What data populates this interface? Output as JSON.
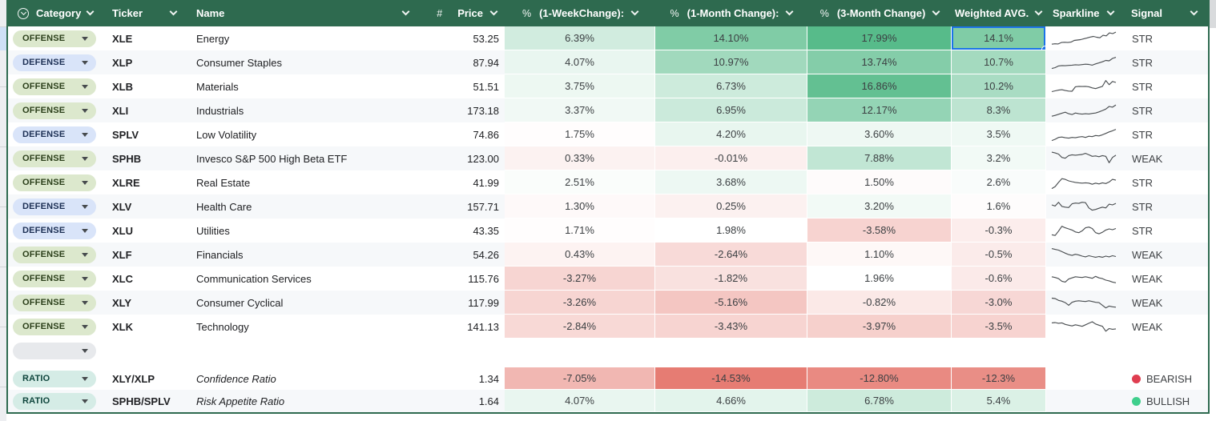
{
  "header": {
    "category": "Category",
    "ticker": "Ticker",
    "name": "Name",
    "price": "Price",
    "week": "(1-WeekChange):",
    "month1": "(1-Month Change):",
    "month3": "(3-Month Change)",
    "wavg": "Weighted AVG.",
    "sparkline": "Sparkline",
    "signal": "Signal",
    "price_type_icon": "#",
    "percent_type_icon": "%"
  },
  "colors": {
    "header_bg": "#2e6a4f",
    "table_border": "#2e6a4f",
    "band_row": "#f6f8fa",
    "selection": "#1a73e8",
    "bearish_dot": "#df3d50",
    "bullish_dot": "#3fcf8c",
    "sparkline_stroke": "#4a4e51"
  },
  "color_scale": {
    "negative": "#e67c73",
    "positive": "#57bb8a",
    "midpoint": 2.0,
    "min": -14.53,
    "max": 17.99
  },
  "rows": [
    {
      "category": "OFFENSE",
      "pill": "offense",
      "ticker": "XLE",
      "name": "Energy",
      "price": "53.25",
      "week": "6.39%",
      "month1": "14.10%",
      "month3": "17.99%",
      "wavg": "14.1%",
      "signal": "STR",
      "dot": null,
      "band": false,
      "selected": "wavg",
      "sparkline": [
        1.2,
        1.4,
        1.3,
        2.1,
        2.2,
        2.1,
        2.3,
        3.2,
        3.4,
        3.6,
        4.1,
        4.5,
        5.0,
        5.3,
        4.9,
        4.6,
        5.9,
        5.6,
        7.2,
        6.8,
        7.6
      ]
    },
    {
      "category": "DEFENSE",
      "pill": "defense",
      "ticker": "XLP",
      "name": "Consumer Staples",
      "price": "87.94",
      "week": "4.07%",
      "month1": "10.97%",
      "month3": "13.74%",
      "wavg": "10.7%",
      "signal": "STR",
      "dot": null,
      "band": true,
      "sparkline": [
        1.0,
        1.5,
        2.4,
        2.6,
        2.5,
        2.7,
        2.8,
        3.0,
        2.9,
        3.1,
        3.3,
        3.2,
        2.8,
        3.5,
        4.0,
        4.6,
        5.3,
        5.1,
        6.4,
        7.0
      ]
    },
    {
      "category": "OFFENSE",
      "pill": "offense",
      "ticker": "XLB",
      "name": "Materials",
      "price": "51.51",
      "week": "3.75%",
      "month1": "6.73%",
      "month3": "16.86%",
      "wavg": "10.2%",
      "signal": "STR",
      "dot": null,
      "band": false,
      "sparkline": [
        1.5,
        1.9,
        2.3,
        2.5,
        2.1,
        1.8,
        1.7,
        4.1,
        4.3,
        4.2,
        4.3,
        4.1,
        3.5,
        3.1,
        3.7,
        4.3,
        7.4,
        5.2,
        6.9,
        6.4
      ]
    },
    {
      "category": "OFFENSE",
      "pill": "offense",
      "ticker": "XLI",
      "name": "Industrials",
      "price": "173.18",
      "week": "3.37%",
      "month1": "6.95%",
      "month3": "12.17%",
      "wavg": "8.3%",
      "signal": "STR",
      "dot": null,
      "band": true,
      "sparkline": [
        1.2,
        1.6,
        2.2,
        2.8,
        3.3,
        2.5,
        2.1,
        2.9,
        2.5,
        2.3,
        2.5,
        2.4,
        2.7,
        2.9,
        3.5,
        4.2,
        5.0,
        6.4,
        6.0,
        7.2
      ]
    },
    {
      "category": "DEFENSE",
      "pill": "defense",
      "ticker": "SPLV",
      "name": "Low Volatility",
      "price": "74.86",
      "week": "1.75%",
      "month1": "4.20%",
      "month3": "3.60%",
      "wavg": "3.5%",
      "signal": "STR",
      "dot": null,
      "band": false,
      "sparkline": [
        1.0,
        1.7,
        2.7,
        2.9,
        2.5,
        2.3,
        2.7,
        2.5,
        2.9,
        3.1,
        2.7,
        3.3,
        3.1,
        3.7,
        3.5,
        4.1,
        4.8,
        5.6,
        6.2,
        7.0
      ]
    },
    {
      "category": "OFFENSE",
      "pill": "offense",
      "ticker": "SPHB",
      "name": "Invesco S&P 500 High Beta ETF",
      "price": "123.00",
      "week": "0.33%",
      "month1": "-0.01%",
      "month3": "7.88%",
      "wavg": "3.2%",
      "signal": "WEAK",
      "dot": null,
      "band": true,
      "sparkline": [
        7.6,
        7.2,
        6.6,
        4.8,
        4.4,
        5.8,
        6.2,
        6.0,
        6.2,
        6.4,
        7.0,
        6.2,
        5.4,
        5.6,
        5.2,
        5.8,
        5.4,
        2.0,
        4.8,
        6.0
      ]
    },
    {
      "category": "OFFENSE",
      "pill": "offense",
      "ticker": "XLRE",
      "name": "Real Estate",
      "price": "41.99",
      "week": "2.51%",
      "month1": "3.68%",
      "month3": "1.50%",
      "wavg": "2.6%",
      "signal": "STR",
      "dot": null,
      "band": false,
      "sparkline": [
        1.0,
        2.1,
        4.3,
        6.3,
        5.9,
        5.1,
        4.7,
        4.3,
        4.1,
        3.9,
        4.1,
        3.9,
        3.3,
        3.9,
        3.5,
        4.1,
        3.7,
        4.5,
        5.9,
        5.5
      ]
    },
    {
      "category": "DEFENSE",
      "pill": "defense",
      "ticker": "XLV",
      "name": "Health Care",
      "price": "157.71",
      "week": "1.30%",
      "month1": "0.25%",
      "month3": "3.20%",
      "wavg": "1.6%",
      "signal": "STR",
      "dot": null,
      "band": true,
      "sparkline": [
        5.1,
        4.5,
        6.5,
        4.3,
        3.9,
        3.7,
        5.7,
        6.1,
        5.9,
        6.5,
        6.3,
        3.5,
        2.3,
        2.7,
        3.3,
        3.9,
        3.5,
        5.5,
        5.1,
        5.9
      ]
    },
    {
      "category": "DEFENSE",
      "pill": "defense",
      "ticker": "XLU",
      "name": "Utilities",
      "price": "43.35",
      "week": "1.71%",
      "month1": "1.98%",
      "month3": "-3.58%",
      "wavg": "-0.3%",
      "signal": "STR",
      "dot": null,
      "band": false,
      "sparkline": [
        2.0,
        1.6,
        3.9,
        6.5,
        5.7,
        5.1,
        4.5,
        3.5,
        3.1,
        4.1,
        5.7,
        6.1,
        5.3,
        3.1,
        2.5,
        3.3,
        4.5,
        5.1,
        4.7,
        5.3
      ]
    },
    {
      "category": "OFFENSE",
      "pill": "offense",
      "ticker": "XLF",
      "name": "Financials",
      "price": "54.26",
      "week": "0.43%",
      "month1": "-2.64%",
      "month3": "1.10%",
      "wavg": "-0.5%",
      "signal": "WEAK",
      "dot": null,
      "band": true,
      "sparkline": [
        7.4,
        7.0,
        6.6,
        5.8,
        5.0,
        4.2,
        3.8,
        4.4,
        4.0,
        3.4,
        3.0,
        3.6,
        3.2,
        2.8,
        3.2,
        2.8,
        3.4,
        3.0,
        3.6,
        3.2
      ]
    },
    {
      "category": "OFFENSE",
      "pill": "offense",
      "ticker": "XLC",
      "name": "Communication Services",
      "price": "115.76",
      "week": "-3.27%",
      "month1": "-1.82%",
      "month3": "1.96%",
      "wavg": "-0.6%",
      "signal": "WEAK",
      "dot": null,
      "band": false,
      "sparkline": [
        5.2,
        4.8,
        4.2,
        2.8,
        2.4,
        4.0,
        4.6,
        5.2,
        5.0,
        4.8,
        5.2,
        4.8,
        4.4,
        5.4,
        4.6,
        4.2,
        3.4,
        3.0,
        2.4,
        2.0
      ]
    },
    {
      "category": "OFFENSE",
      "pill": "offense",
      "ticker": "XLY",
      "name": "Consumer Cyclical",
      "price": "117.99",
      "week": "-3.26%",
      "month1": "-5.16%",
      "month3": "-0.82%",
      "wavg": "-3.0%",
      "signal": "WEAK",
      "dot": null,
      "band": true,
      "sparkline": [
        6.6,
        6.4,
        5.4,
        5.0,
        4.2,
        2.8,
        4.4,
        5.0,
        5.2,
        5.0,
        4.8,
        5.2,
        4.8,
        4.4,
        4.2,
        2.8,
        1.4,
        2.4,
        2.0,
        1.8
      ]
    },
    {
      "category": "OFFENSE",
      "pill": "offense",
      "ticker": "XLK",
      "name": "Technology",
      "price": "141.13",
      "week": "-2.84%",
      "month1": "-3.43%",
      "month3": "-3.97%",
      "wavg": "-3.5%",
      "signal": "WEAK",
      "dot": null,
      "band": false,
      "sparkline": [
        6.2,
        6.4,
        6.0,
        6.2,
        5.4,
        5.0,
        4.6,
        5.2,
        4.8,
        4.4,
        5.2,
        6.0,
        6.8,
        5.6,
        5.0,
        4.4,
        1.8,
        3.2,
        2.8,
        3.0
      ]
    },
    {
      "category": "",
      "pill": "empty",
      "ticker": "",
      "name": "",
      "price": "",
      "week": "",
      "month1": "",
      "month3": "",
      "wavg": "",
      "signal": "",
      "dot": null,
      "band": false,
      "sparkline": null
    },
    {
      "spacer": true
    },
    {
      "category": "RATIO",
      "pill": "ratio",
      "ticker": "XLY/XLP",
      "name": "Confidence Ratio",
      "italic": true,
      "price": "1.34",
      "week": "-7.05%",
      "month1": "-14.53%",
      "month3": "-12.80%",
      "wavg": "-12.3%",
      "signal": "BEARISH",
      "dot": "bearish",
      "band": false,
      "short": true,
      "sparkline": null
    },
    {
      "category": "RATIO",
      "pill": "ratio",
      "ticker": "SPHB/SPLV",
      "name": "Risk Appetite Ratio",
      "italic": true,
      "price": "1.64",
      "week": "4.07%",
      "month1": "4.66%",
      "month3": "6.78%",
      "wavg": "5.4%",
      "signal": "BULLISH",
      "dot": "bullish",
      "band": true,
      "short": true,
      "sparkline": null
    }
  ]
}
